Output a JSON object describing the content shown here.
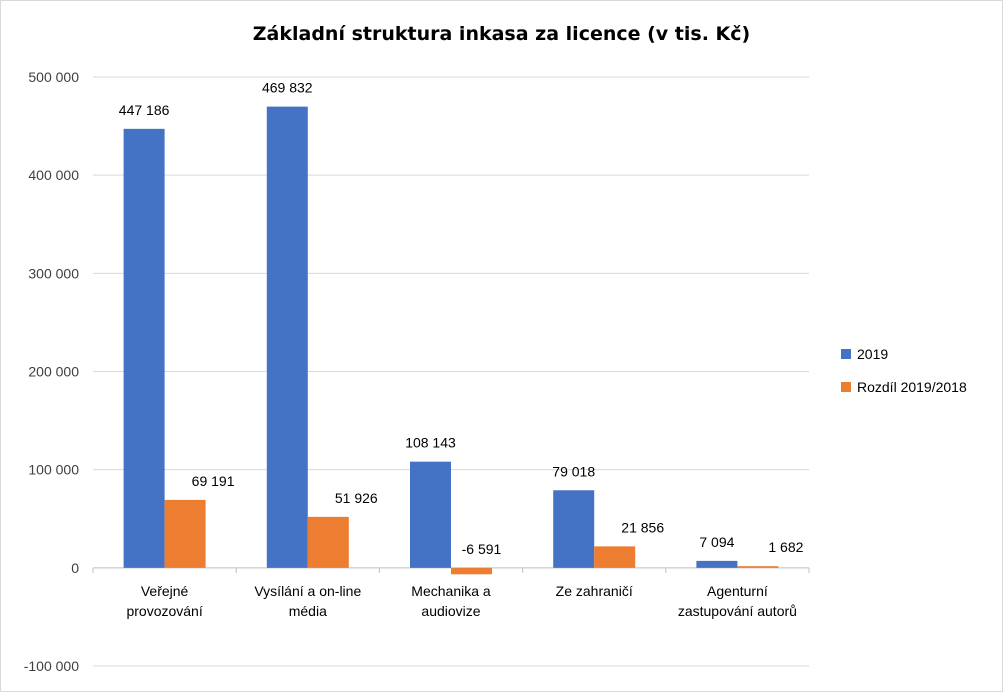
{
  "chart_data": {
    "type": "bar",
    "title": "Základní struktura inkasa za licence (v tis. Kč)",
    "categories": [
      [
        "Veřejné",
        "provozování"
      ],
      [
        "Vysílání a on-line",
        "média"
      ],
      [
        "Mechanika a",
        "audiovize"
      ],
      [
        "Ze zahraničí"
      ],
      [
        "Agenturní",
        "zastupování autorů"
      ]
    ],
    "series": [
      {
        "name": "2019",
        "color": "#4472C4",
        "values": [
          447186,
          469832,
          108143,
          79018,
          7094
        ],
        "labels": [
          "447 186",
          "469 832",
          "108 143",
          "79 018",
          "7 094"
        ]
      },
      {
        "name": "Rozdíl 2019/2018",
        "color": "#ED7D31",
        "values": [
          69191,
          51926,
          -6591,
          21856,
          1682
        ],
        "labels": [
          "69 191",
          "51 926",
          "-6 591",
          "21 856",
          "1 682"
        ]
      }
    ],
    "ylim": [
      -100000,
      500000
    ],
    "yticks": [
      -100000,
      0,
      100000,
      200000,
      300000,
      400000,
      500000
    ],
    "ytick_labels": [
      "-100 000",
      "0",
      "100 000",
      "200 000",
      "300 000",
      "400 000",
      "500 000"
    ],
    "grid": true,
    "legend_position": "right"
  }
}
